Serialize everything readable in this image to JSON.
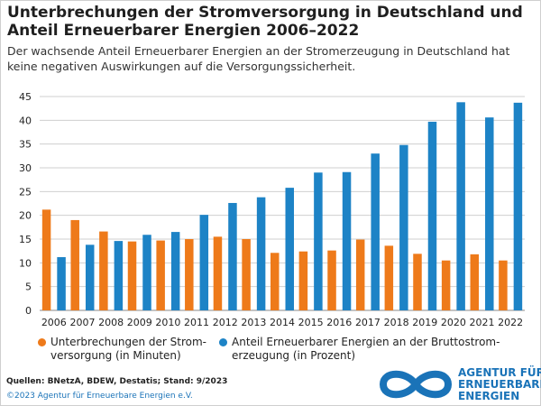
{
  "header": {
    "title": "Unterbrechungen der Stromversorgung in Deutschland und Anteil Erneuerbarer Energien 2006–2022",
    "subtitle": "Der wachsende Anteil Erneuerbarer Energien an der Stromerzeugung in Deutschland hat keine negativen Auswirkungen auf die Versorgungssicherheit."
  },
  "chart_data": {
    "type": "bar",
    "categories": [
      "2006",
      "2007",
      "2008",
      "2009",
      "2010",
      "2011",
      "2012",
      "2013",
      "2014",
      "2015",
      "2016",
      "2017",
      "2018",
      "2019",
      "2020",
      "2021",
      "2022"
    ],
    "series": [
      {
        "name": "Unterbrechungen der Stromversorgung (in Minuten)",
        "color": "#ee7a1a",
        "values": [
          21.2,
          19.0,
          16.6,
          14.5,
          14.7,
          15.0,
          15.5,
          15.0,
          12.1,
          12.4,
          12.6,
          14.9,
          13.6,
          11.9,
          10.5,
          11.8,
          10.5
        ]
      },
      {
        "name": "Anteil Erneuerbarer Energien an der Bruttostromerzeugung (in Prozent)",
        "color": "#1d83c6",
        "values": [
          11.2,
          13.8,
          14.6,
          15.9,
          16.5,
          20.1,
          22.6,
          23.8,
          25.8,
          29.0,
          29.1,
          33.0,
          34.8,
          39.7,
          43.8,
          40.6,
          43.7
        ]
      }
    ],
    "yticks": [
      0,
      5,
      10,
      15,
      20,
      25,
      30,
      35,
      40,
      45
    ],
    "ylim": [
      0,
      45
    ],
    "grid": true,
    "legend_position": "bottom"
  },
  "legend": {
    "item1": "Unterbrechungen der Strom-\nversorgung  (in Minuten)",
    "item2": "Anteil Erneuerbarer Energien an der Bruttostrom-\nerzeugung (in Prozent)"
  },
  "footer": {
    "sources": "Quellen: BNetzA, BDEW, Destatis; Stand: 9/2023",
    "copyright": "©2023 Agentur für Erneuerbare Energien e.V.",
    "logo_text": "AGENTUR FÜR\nERNEUERBARE\nENERGIEN"
  },
  "colors": {
    "orange": "#ee7a1a",
    "blue": "#1d83c6",
    "grid": "#cfcfcf"
  }
}
